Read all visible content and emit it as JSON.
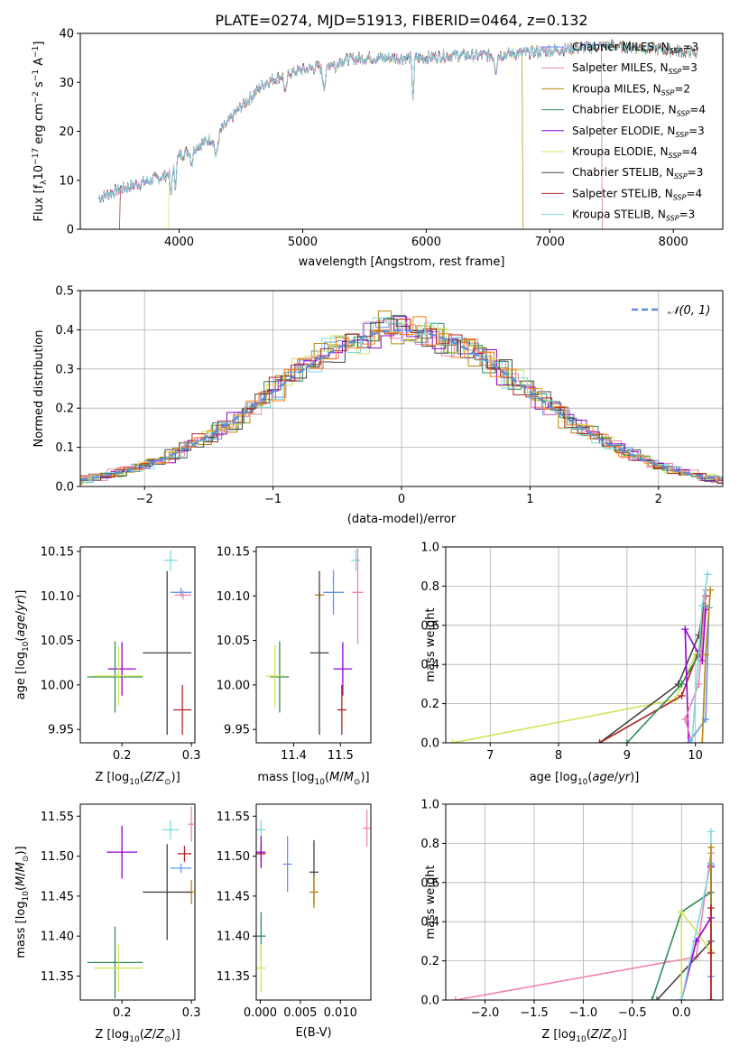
{
  "title": "PLATE=0274, MJD=51913, FIBERID=0464, z=0.132",
  "colors": {
    "Chabrier MILES": "#6495ed",
    "Salpeter MILES": "#ee82b4",
    "Kroupa MILES": "#b8860b",
    "Chabrier ELODIE": "#2e8b57",
    "Salpeter ELODIE": "#9400d3",
    "Kroupa ELODIE": "#d4e157",
    "Chabrier STELIB": "#444444",
    "Salpeter STELIB": "#b22222",
    "Kroupa STELIB": "#7fd8d8",
    "Normal": "#5b8fd9",
    "Orange": "#ff7f0e"
  },
  "chart_data": [
    {
      "id": "spectrum",
      "type": "line",
      "xlabel": "wavelength [Angstrom, rest frame]",
      "ylabel": "Flux [f_λ10^-17 erg cm^-2 s^-1 A^-1]",
      "ylabel_parts": [
        "Flux [f",
        "λ",
        "10",
        "−17",
        " erg cm",
        "−2",
        " s",
        "−1",
        " A",
        "−1",
        "]"
      ],
      "xlim": [
        3200,
        8400
      ],
      "ylim": [
        0,
        40
      ],
      "xticks": [
        4000,
        5000,
        6000,
        7000,
        8000
      ],
      "yticks": [
        0,
        10,
        20,
        30,
        40
      ],
      "legend": [
        {
          "name": "Chabrier MILES",
          "label": "Chabrier MILES, N",
          "sub": "SSP",
          "n": "=3"
        },
        {
          "name": "Salpeter MILES",
          "label": "Salpeter MILES, N",
          "sub": "SSP",
          "n": "=3"
        },
        {
          "name": "Kroupa MILES",
          "label": "Kroupa MILES, N",
          "sub": "SSP",
          "n": "=2"
        },
        {
          "name": "Chabrier ELODIE",
          "label": "Chabrier ELODIE, N",
          "sub": "SSP",
          "n": "=4"
        },
        {
          "name": "Salpeter ELODIE",
          "label": "Salpeter ELODIE, N",
          "sub": "SSP",
          "n": "=3"
        },
        {
          "name": "Kroupa ELODIE",
          "label": "Kroupa ELODIE, N",
          "sub": "SSP",
          "n": "=4"
        },
        {
          "name": "Chabrier STELIB",
          "label": "Chabrier STELIB, N",
          "sub": "SSP",
          "n": "=3"
        },
        {
          "name": "Salpeter STELIB",
          "label": "Salpeter STELIB, N",
          "sub": "SSP",
          "n": "=4"
        },
        {
          "name": "Kroupa STELIB",
          "label": "Kroupa STELIB, N",
          "sub": "SSP",
          "n": "=3"
        }
      ],
      "continuum": [
        [
          3350,
          6.5
        ],
        [
          3500,
          8
        ],
        [
          3700,
          9.5
        ],
        [
          3900,
          11
        ],
        [
          4000,
          15
        ],
        [
          4100,
          16.5
        ],
        [
          4300,
          19
        ],
        [
          4500,
          25
        ],
        [
          4700,
          30
        ],
        [
          4900,
          32
        ],
        [
          5100,
          33
        ],
        [
          5300,
          34.5
        ],
        [
          5500,
          35
        ],
        [
          5800,
          35
        ],
        [
          6000,
          35
        ],
        [
          6200,
          35.5
        ],
        [
          6500,
          35.5
        ],
        [
          6800,
          36
        ],
        [
          7000,
          36.5
        ],
        [
          7200,
          37
        ],
        [
          7500,
          37.5
        ],
        [
          7800,
          37
        ],
        [
          8000,
          36.5
        ],
        [
          8200,
          36
        ]
      ],
      "cutoffs": [
        {
          "name": "Kroupa ELODIE",
          "x": 3920,
          "side": "left"
        },
        {
          "name": "Salpeter STELIB",
          "x": 3520,
          "side": "left"
        },
        {
          "name": "Kroupa MILES",
          "x": 6780,
          "side": "right"
        },
        {
          "name": "Salpeter MILES",
          "x": 7420,
          "side": "right"
        },
        {
          "name": "Chabrier MILES",
          "x": 7420,
          "side": "right"
        }
      ],
      "grid": false
    },
    {
      "id": "residuals",
      "type": "histogram",
      "xlabel": "(data-model)/error",
      "ylabel": "Normed distribution",
      "xlim": [
        -2.5,
        2.5
      ],
      "ylim": [
        0,
        0.5
      ],
      "xticks": [
        -2,
        -1,
        0,
        1,
        2
      ],
      "yticks": [
        0.0,
        0.1,
        0.2,
        0.3,
        0.4,
        0.5
      ],
      "legend_label": "𝒩(0, 1)",
      "grid": true
    },
    {
      "id": "age-vs-Z",
      "type": "errorbar",
      "xlabel": "Z [log10(Z/Z⊙)]",
      "ylabel": "age  [log10(age/yr)]",
      "xlim": [
        0.14,
        0.305
      ],
      "ylim": [
        9.935,
        10.155
      ],
      "xticks": [
        0.2,
        0.3
      ],
      "yticks": [
        9.95,
        10.0,
        10.05,
        10.1,
        10.15
      ],
      "points": [
        {
          "name": "Kroupa STELIB",
          "x": 0.27,
          "y": 10.14,
          "xe": 0.01,
          "ye": 0.012
        },
        {
          "name": "Chabrier MILES",
          "x": 0.285,
          "y": 10.104,
          "xe": 0.015,
          "ye": 0
        },
        {
          "name": "Salpeter MILES",
          "x": 0.288,
          "y": 10.101,
          "xe": 0.012,
          "ye": 0
        },
        {
          "name": "Chabrier STELIB",
          "x": 0.265,
          "y": 10.036,
          "xe": 0.035,
          "ye": 0.092
        },
        {
          "name": "Salpeter STELIB",
          "x": 0.287,
          "y": 9.972,
          "xe": 0.013,
          "ye": 0.028
        },
        {
          "name": "Salpeter ELODIE",
          "x": 0.2,
          "y": 10.018,
          "xe": 0.02,
          "ye": 0.03
        },
        {
          "name": "Chabrier ELODIE",
          "x": 0.19,
          "y": 10.009,
          "xe": 0.04,
          "ye": 0.04
        },
        {
          "name": "Kroupa ELODIE",
          "x": 0.195,
          "y": 10.01,
          "xe": 0.035,
          "ye": 0.033
        }
      ]
    },
    {
      "id": "age-vs-mass",
      "type": "errorbar",
      "xlabel": "mass [log10(M/M⊙)]",
      "ylabel": "",
      "xlim": [
        11.32,
        11.565
      ],
      "ylim": [
        9.935,
        10.155
      ],
      "xticks": [
        11.4,
        11.5
      ],
      "yticks": [
        9.95,
        10.0,
        10.05,
        10.1,
        10.15
      ],
      "points": [
        {
          "name": "Kroupa STELIB",
          "x": 11.533,
          "y": 10.14,
          "xe": 0.01,
          "ye": 0.012
        },
        {
          "name": "Chabrier MILES",
          "x": 11.485,
          "y": 10.104,
          "xe": 0.022,
          "ye": 0.025
        },
        {
          "name": "Salpeter MILES",
          "x": 11.537,
          "y": 10.104,
          "xe": 0.012,
          "ye": 0.058
        },
        {
          "name": "Kroupa MILES",
          "x": 11.455,
          "y": 10.101,
          "xe": 0.01,
          "ye": 0
        },
        {
          "name": "Chabrier STELIB",
          "x": 11.455,
          "y": 10.036,
          "xe": 0.02,
          "ye": 0.092
        },
        {
          "name": "Salpeter ELODIE",
          "x": 11.505,
          "y": 10.018,
          "xe": 0.02,
          "ye": 0.03
        },
        {
          "name": "Salpeter STELIB",
          "x": 11.503,
          "y": 9.972,
          "xe": 0.01,
          "ye": 0.028
        },
        {
          "name": "Chabrier ELODIE",
          "x": 11.37,
          "y": 10.009,
          "xe": 0.02,
          "ye": 0.04
        },
        {
          "name": "Kroupa ELODIE",
          "x": 11.36,
          "y": 10.01,
          "xe": 0.02,
          "ye": 0.035
        }
      ]
    },
    {
      "id": "mass-weight-vs-age",
      "type": "line",
      "xlabel": "age  [log10(age/yr)]",
      "ylabel": "mass weight",
      "xlim": [
        6.35,
        10.4
      ],
      "ylim": [
        0,
        1.0
      ],
      "xticks": [
        7,
        8,
        9,
        10
      ],
      "yticks": [
        0.0,
        0.2,
        0.4,
        0.6,
        0.8,
        1.0
      ],
      "grid": true,
      "series": [
        {
          "name": "Kroupa ELODIE",
          "x": [
            6.45,
            9.7,
            10.0,
            10.1
          ],
          "y": [
            0.0,
            0.22,
            0.45,
            0.45
          ]
        },
        {
          "name": "Chabrier STELIB",
          "x": [
            8.6,
            9.75,
            10.05,
            10.12
          ],
          "y": [
            0.0,
            0.3,
            0.55,
            0.7
          ]
        },
        {
          "name": "Salpeter STELIB",
          "x": [
            8.6,
            9.8,
            10.05,
            10.15
          ],
          "y": [
            0.0,
            0.24,
            0.47,
            0.75
          ]
        },
        {
          "name": "Chabrier ELODIE",
          "x": [
            9.0,
            9.8,
            10.05,
            10.15
          ],
          "y": [
            0.0,
            0.3,
            0.45,
            0.7
          ]
        },
        {
          "name": "Salpeter ELODIE",
          "x": [
            9.9,
            9.85,
            10.1,
            10.15
          ],
          "y": [
            0.0,
            0.58,
            0.42,
            0.68
          ]
        },
        {
          "name": "Salpeter MILES",
          "x": [
            9.95,
            9.85,
            10.05,
            10.15
          ],
          "y": [
            0.0,
            0.12,
            0.3,
            0.78
          ]
        },
        {
          "name": "Chabrier MILES",
          "x": [
            9.9,
            10.15,
            10.2
          ],
          "y": [
            0.0,
            0.12,
            0.69
          ]
        },
        {
          "name": "Kroupa MILES",
          "x": [
            10.1,
            10.15,
            10.22
          ],
          "y": [
            0.0,
            0.45,
            0.78
          ]
        },
        {
          "name": "Kroupa STELIB",
          "x": [
            9.95,
            10.1,
            10.18
          ],
          "y": [
            0.0,
            0.7,
            0.86
          ]
        }
      ]
    },
    {
      "id": "mass-vs-Z",
      "type": "errorbar",
      "xlabel": "Z [log10(Z/Z⊙)]",
      "ylabel": "mass [log10(M/M⊙)]",
      "xlim": [
        0.14,
        0.305
      ],
      "ylim": [
        11.32,
        11.565
      ],
      "xticks": [
        0.2,
        0.3
      ],
      "yticks": [
        11.35,
        11.4,
        11.45,
        11.5,
        11.55
      ],
      "points": [
        {
          "name": "Salpeter MILES",
          "x": 0.3,
          "y": 11.54,
          "xe": 0.005,
          "ye": 0.022
        },
        {
          "name": "Kroupa STELIB",
          "x": 0.27,
          "y": 11.533,
          "xe": 0.012,
          "ye": 0.012
        },
        {
          "name": "Salpeter ELODIE",
          "x": 0.2,
          "y": 11.505,
          "xe": 0.022,
          "ye": 0.033
        },
        {
          "name": "Salpeter STELIB",
          "x": 0.29,
          "y": 11.503,
          "xe": 0.01,
          "ye": 0.01
        },
        {
          "name": "Chabrier MILES",
          "x": 0.285,
          "y": 11.485,
          "xe": 0.015,
          "ye": 0
        },
        {
          "name": "Kroupa MILES",
          "x": 0.3,
          "y": 11.455,
          "xe": 0,
          "ye": 0.015
        },
        {
          "name": "Chabrier STELIB",
          "x": 0.265,
          "y": 11.455,
          "xe": 0.035,
          "ye": 0.06
        },
        {
          "name": "Chabrier ELODIE",
          "x": 0.19,
          "y": 11.367,
          "xe": 0.04,
          "ye": 0.045
        },
        {
          "name": "Kroupa ELODIE",
          "x": 0.195,
          "y": 11.36,
          "xe": 0.035,
          "ye": 0.03
        }
      ]
    },
    {
      "id": "mass-vs-ebv",
      "type": "errorbar",
      "xlabel": "E(B-V)",
      "ylabel": "",
      "xlim": [
        -0.0005,
        0.0138
      ],
      "ylim": [
        11.32,
        11.565
      ],
      "xticks": [
        0.0,
        0.005,
        0.01
      ],
      "yticks": [
        11.35,
        11.4,
        11.45,
        11.5,
        11.55
      ],
      "points": [
        {
          "name": "Kroupa STELIB",
          "x": 0.0001,
          "y": 11.533,
          "xe": 0,
          "ye": 0.012
        },
        {
          "name": "Salpeter STELIB",
          "x": 0.0001,
          "y": 11.503,
          "xe": 0,
          "ye": 0.01
        },
        {
          "name": "Salpeter ELODIE",
          "x": 0.0001,
          "y": 11.505,
          "xe": 0,
          "ye": 0.02
        },
        {
          "name": "Chabrier ELODIE",
          "x": 0.0001,
          "y": 11.4,
          "xe": 0,
          "ye": 0.03
        },
        {
          "name": "Kroupa ELODIE",
          "x": 0.0001,
          "y": 11.36,
          "xe": 0,
          "ye": 0.03
        },
        {
          "name": "Chabrier MILES",
          "x": 0.0034,
          "y": 11.49,
          "xe": 0,
          "ye": 0.035
        },
        {
          "name": "Chabrier STELIB",
          "x": 0.0067,
          "y": 11.48,
          "xe": 0,
          "ye": 0.04
        },
        {
          "name": "Kroupa MILES",
          "x": 0.0067,
          "y": 11.455,
          "xe": 0,
          "ye": 0.02
        },
        {
          "name": "Salpeter MILES",
          "x": 0.0133,
          "y": 11.535,
          "xe": 0,
          "ye": 0.023
        }
      ]
    },
    {
      "id": "mass-weight-vs-Z",
      "type": "line",
      "xlabel": "Z [log10(Z/Z⊙)]",
      "ylabel": "mass weight",
      "xlim": [
        -2.4,
        0.42
      ],
      "ylim": [
        0,
        1.0
      ],
      "xticks": [
        -2.0,
        -1.5,
        -1.0,
        -0.5,
        0.0
      ],
      "yticks": [
        0.0,
        0.2,
        0.4,
        0.6,
        0.8,
        1.0
      ],
      "grid": true,
      "series": [
        {
          "name": "Salpeter MILES",
          "x": [
            -2.3,
            0.15,
            0.3
          ],
          "y": [
            0.0,
            0.22,
            0.75
          ]
        },
        {
          "name": "Chabrier ELODIE",
          "x": [
            -0.3,
            0.0,
            0.3
          ],
          "y": [
            0.0,
            0.45,
            0.55
          ]
        },
        {
          "name": "Chabrier STELIB",
          "x": [
            -0.25,
            0.3,
            0.3
          ],
          "y": [
            0.0,
            0.3,
            0.7
          ]
        },
        {
          "name": "Kroupa ELODIE",
          "x": [
            0.0,
            0.0,
            0.3
          ],
          "y": [
            0.0,
            0.45,
            0.25
          ]
        },
        {
          "name": "Salpeter ELODIE",
          "x": [
            0.0,
            0.15,
            0.3,
            0.3
          ],
          "y": [
            0.0,
            0.3,
            0.42,
            0.68
          ]
        },
        {
          "name": "Kroupa STELIB",
          "x": [
            0.0,
            0.3,
            0.3
          ],
          "y": [
            0.0,
            0.7,
            0.86
          ]
        },
        {
          "name": "Chabrier MILES",
          "x": [
            0.3,
            0.3,
            0.3
          ],
          "y": [
            0.0,
            0.12,
            0.69
          ]
        },
        {
          "name": "Kroupa MILES",
          "x": [
            0.3,
            0.3
          ],
          "y": [
            0.0,
            0.78
          ]
        },
        {
          "name": "Salpeter STELIB",
          "x": [
            0.3,
            0.3,
            0.3
          ],
          "y": [
            0.0,
            0.24,
            0.47
          ]
        }
      ]
    }
  ]
}
